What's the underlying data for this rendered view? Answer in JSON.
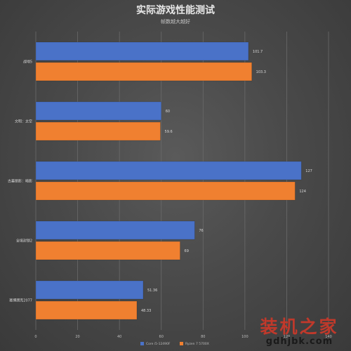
{
  "chart_data": {
    "type": "bar",
    "orientation": "horizontal",
    "title": "实际游戏性能测试",
    "subtitle": "帧数越大越好",
    "categories": [
      "战地5",
      "文明：太空",
      "古墓丽影：暗影",
      "全境封锁2",
      "赛博朋克2077"
    ],
    "series": [
      {
        "name": "Core i5-12490F",
        "color": "#4a72c8",
        "values": [
          101.7,
          60,
          127,
          76,
          51.36
        ]
      },
      {
        "name": "Ryzen 7 5700X",
        "color": "#f08030",
        "values": [
          103.3,
          59.6,
          124,
          69,
          48.33
        ]
      }
    ],
    "value_labels": [
      [
        "101.7",
        "60",
        "127",
        "76",
        "51.36"
      ],
      [
        "103.3",
        "59.6",
        "124",
        "69",
        "48.33"
      ]
    ],
    "xlim": [
      0,
      140
    ],
    "xticks": [
      "0",
      "20",
      "40",
      "60",
      "80",
      "100",
      "120",
      "140"
    ],
    "grid": true,
    "legend_position": "bottom"
  },
  "colors": {
    "gridline": "#6a6a6a",
    "text": "#d8d8d8",
    "axis_text": "#bdbdbd"
  },
  "watermark": {
    "main": "装机之家",
    "url": "gdhjbk.com"
  }
}
